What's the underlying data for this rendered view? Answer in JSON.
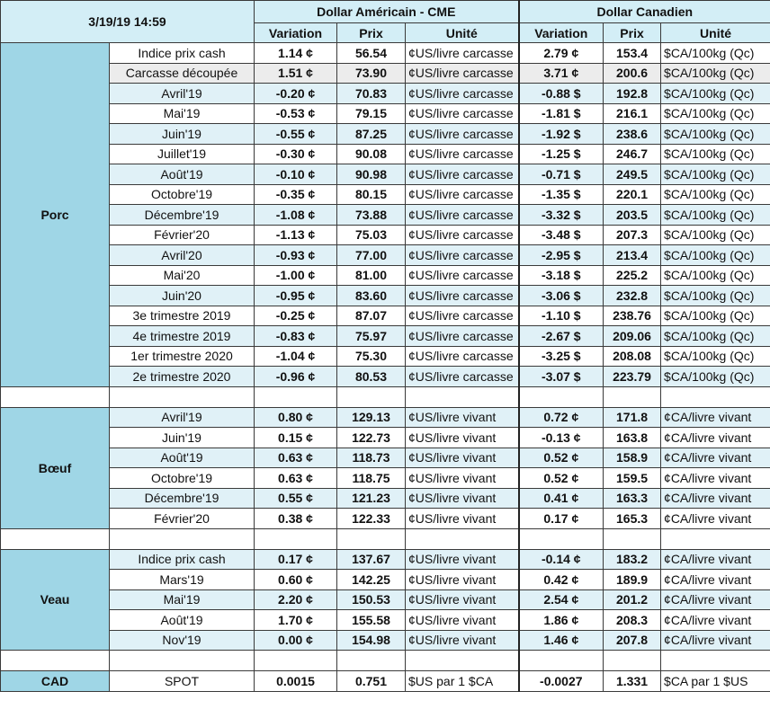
{
  "header": {
    "datetime": "3/19/19 14:59",
    "usd_title": "Dollar Américain - CME",
    "cad_title": "Dollar Canadien",
    "col_variation": "Variation",
    "col_prix": "Prix",
    "col_unite": "Unité"
  },
  "groups": {
    "porc": "Porc",
    "boeuf": "Bœuf",
    "veau": "Veau",
    "cad": "CAD"
  },
  "porc": [
    {
      "label": "Indice prix cash",
      "us_var": "1.14 ¢",
      "us_price": "56.54",
      "us_unit": "¢US/livre carcasse",
      "ca_var": "2.79 ¢",
      "ca_price": "153.4",
      "ca_unit": "$CA/100kg (Qc)",
      "us_sign": "pos",
      "ca_sign": "pos"
    },
    {
      "label": "Carcasse découpée",
      "us_var": "1.51 ¢",
      "us_price": "73.90",
      "us_unit": "¢US/livre carcasse",
      "ca_var": "3.71 ¢",
      "ca_price": "200.6",
      "ca_unit": "$CA/100kg (Qc)",
      "us_sign": "pos",
      "ca_sign": "pos"
    },
    {
      "label": "Avril'19",
      "us_var": "-0.20 ¢",
      "us_price": "70.83",
      "us_unit": "¢US/livre carcasse",
      "ca_var": "-0.88 $",
      "ca_price": "192.8",
      "ca_unit": "$CA/100kg (Qc)",
      "us_sign": "neg",
      "ca_sign": "neg"
    },
    {
      "label": "Mai'19",
      "us_var": "-0.53 ¢",
      "us_price": "79.15",
      "us_unit": "¢US/livre carcasse",
      "ca_var": "-1.81 $",
      "ca_price": "216.1",
      "ca_unit": "$CA/100kg (Qc)",
      "us_sign": "neg",
      "ca_sign": "neg"
    },
    {
      "label": "Juin'19",
      "us_var": "-0.55 ¢",
      "us_price": "87.25",
      "us_unit": "¢US/livre carcasse",
      "ca_var": "-1.92 $",
      "ca_price": "238.6",
      "ca_unit": "$CA/100kg (Qc)",
      "us_sign": "neg",
      "ca_sign": "neg"
    },
    {
      "label": "Juillet'19",
      "us_var": "-0.30 ¢",
      "us_price": "90.08",
      "us_unit": "¢US/livre carcasse",
      "ca_var": "-1.25 $",
      "ca_price": "246.7",
      "ca_unit": "$CA/100kg (Qc)",
      "us_sign": "neg",
      "ca_sign": "neg"
    },
    {
      "label": "Août'19",
      "us_var": "-0.10 ¢",
      "us_price": "90.98",
      "us_unit": "¢US/livre carcasse",
      "ca_var": "-0.71 $",
      "ca_price": "249.5",
      "ca_unit": "$CA/100kg (Qc)",
      "us_sign": "neg",
      "ca_sign": "neg"
    },
    {
      "label": "Octobre'19",
      "us_var": "-0.35 ¢",
      "us_price": "80.15",
      "us_unit": "¢US/livre carcasse",
      "ca_var": "-1.35 $",
      "ca_price": "220.1",
      "ca_unit": "$CA/100kg (Qc)",
      "us_sign": "neg",
      "ca_sign": "neg"
    },
    {
      "label": "Décembre'19",
      "us_var": "-1.08 ¢",
      "us_price": "73.88",
      "us_unit": "¢US/livre carcasse",
      "ca_var": "-3.32 $",
      "ca_price": "203.5",
      "ca_unit": "$CA/100kg (Qc)",
      "us_sign": "neg",
      "ca_sign": "neg"
    },
    {
      "label": "Février'20",
      "us_var": "-1.13 ¢",
      "us_price": "75.03",
      "us_unit": "¢US/livre carcasse",
      "ca_var": "-3.48 $",
      "ca_price": "207.3",
      "ca_unit": "$CA/100kg (Qc)",
      "us_sign": "neg",
      "ca_sign": "neg"
    },
    {
      "label": "Avril'20",
      "us_var": "-0.93 ¢",
      "us_price": "77.00",
      "us_unit": "¢US/livre carcasse",
      "ca_var": "-2.95 $",
      "ca_price": "213.4",
      "ca_unit": "$CA/100kg (Qc)",
      "us_sign": "neg",
      "ca_sign": "neg"
    },
    {
      "label": "Mai'20",
      "us_var": "-1.00 ¢",
      "us_price": "81.00",
      "us_unit": "¢US/livre carcasse",
      "ca_var": "-3.18 $",
      "ca_price": "225.2",
      "ca_unit": "$CA/100kg (Qc)",
      "us_sign": "neg",
      "ca_sign": "neg"
    },
    {
      "label": "Juin'20",
      "us_var": "-0.95 ¢",
      "us_price": "83.60",
      "us_unit": "¢US/livre carcasse",
      "ca_var": "-3.06 $",
      "ca_price": "232.8",
      "ca_unit": "$CA/100kg (Qc)",
      "us_sign": "neg",
      "ca_sign": "neg"
    },
    {
      "label": "3e trimestre 2019",
      "us_var": "-0.25 ¢",
      "us_price": "87.07",
      "us_unit": "¢US/livre carcasse",
      "ca_var": "-1.10 $",
      "ca_price": "238.76",
      "ca_unit": "$CA/100kg (Qc)",
      "us_sign": "neg",
      "ca_sign": "neg"
    },
    {
      "label": "4e trimestre 2019",
      "us_var": "-0.83 ¢",
      "us_price": "75.97",
      "us_unit": "¢US/livre carcasse",
      "ca_var": "-2.67 $",
      "ca_price": "209.06",
      "ca_unit": "$CA/100kg (Qc)",
      "us_sign": "neg",
      "ca_sign": "neg"
    },
    {
      "label": "1er trimestre 2020",
      "us_var": "-1.04 ¢",
      "us_price": "75.30",
      "us_unit": "¢US/livre carcasse",
      "ca_var": "-3.25 $",
      "ca_price": "208.08",
      "ca_unit": "$CA/100kg (Qc)",
      "us_sign": "neg",
      "ca_sign": "neg"
    },
    {
      "label": "2e trimestre 2020",
      "us_var": "-0.96 ¢",
      "us_price": "80.53",
      "us_unit": "¢US/livre carcasse",
      "ca_var": "-3.07 $",
      "ca_price": "223.79",
      "ca_unit": "$CA/100kg (Qc)",
      "us_sign": "neg",
      "ca_sign": "neg"
    }
  ],
  "boeuf": [
    {
      "label": "Avril'19",
      "us_var": "0.80 ¢",
      "us_price": "129.13",
      "us_unit": "¢US/livre vivant",
      "ca_var": "0.72 ¢",
      "ca_price": "171.8",
      "ca_unit": "¢CA/livre vivant",
      "us_sign": "pos",
      "ca_sign": "pos"
    },
    {
      "label": "Juin'19",
      "us_var": "0.15 ¢",
      "us_price": "122.73",
      "us_unit": "¢US/livre vivant",
      "ca_var": "-0.13 ¢",
      "ca_price": "163.8",
      "ca_unit": "¢CA/livre vivant",
      "us_sign": "pos",
      "ca_sign": "neg"
    },
    {
      "label": "Août'19",
      "us_var": "0.63 ¢",
      "us_price": "118.73",
      "us_unit": "¢US/livre vivant",
      "ca_var": "0.52 ¢",
      "ca_price": "158.9",
      "ca_unit": "¢CA/livre vivant",
      "us_sign": "pos",
      "ca_sign": "pos"
    },
    {
      "label": "Octobre'19",
      "us_var": "0.63 ¢",
      "us_price": "118.75",
      "us_unit": "¢US/livre vivant",
      "ca_var": "0.52 ¢",
      "ca_price": "159.5",
      "ca_unit": "¢CA/livre vivant",
      "us_sign": "pos",
      "ca_sign": "pos"
    },
    {
      "label": "Décembre'19",
      "us_var": "0.55 ¢",
      "us_price": "121.23",
      "us_unit": "¢US/livre vivant",
      "ca_var": "0.41 ¢",
      "ca_price": "163.3",
      "ca_unit": "¢CA/livre vivant",
      "us_sign": "pos",
      "ca_sign": "pos"
    },
    {
      "label": "Février'20",
      "us_var": "0.38 ¢",
      "us_price": "122.33",
      "us_unit": "¢US/livre vivant",
      "ca_var": "0.17 ¢",
      "ca_price": "165.3",
      "ca_unit": "¢CA/livre vivant",
      "us_sign": "pos",
      "ca_sign": "pos"
    }
  ],
  "veau": [
    {
      "label": "Indice prix cash",
      "us_var": "0.17 ¢",
      "us_price": "137.67",
      "us_unit": "¢US/livre vivant",
      "ca_var": "-0.14 ¢",
      "ca_price": "183.2",
      "ca_unit": "¢CA/livre vivant",
      "us_sign": "pos",
      "ca_sign": "neg"
    },
    {
      "label": "Mars'19",
      "us_var": "0.60 ¢",
      "us_price": "142.25",
      "us_unit": "¢US/livre vivant",
      "ca_var": "0.42 ¢",
      "ca_price": "189.9",
      "ca_unit": "¢CA/livre vivant",
      "us_sign": "pos",
      "ca_sign": "pos"
    },
    {
      "label": "Mai'19",
      "us_var": "2.20 ¢",
      "us_price": "150.53",
      "us_unit": "¢US/livre vivant",
      "ca_var": "2.54 ¢",
      "ca_price": "201.2",
      "ca_unit": "¢CA/livre vivant",
      "us_sign": "pos",
      "ca_sign": "pos"
    },
    {
      "label": "Août'19",
      "us_var": "1.70 ¢",
      "us_price": "155.58",
      "us_unit": "¢US/livre vivant",
      "ca_var": "1.86 ¢",
      "ca_price": "208.3",
      "ca_unit": "¢CA/livre vivant",
      "us_sign": "pos",
      "ca_sign": "pos"
    },
    {
      "label": "Nov'19",
      "us_var": "0.00 ¢",
      "us_price": "154.98",
      "us_unit": "¢US/livre vivant",
      "ca_var": "1.46 ¢",
      "ca_price": "207.8",
      "ca_unit": "¢CA/livre vivant",
      "us_sign": "zero",
      "ca_sign": "pos"
    }
  ],
  "cad": [
    {
      "label": "SPOT",
      "us_var": "0.0015",
      "us_price": "0.751",
      "us_unit": "$US par 1 $CA",
      "ca_var": "-0.0027",
      "ca_price": "1.331",
      "ca_unit": "$CA par 1 $US",
      "us_sign": "pos",
      "ca_sign": "neg"
    }
  ],
  "colors": {
    "header_bg": "#d3eef6",
    "group_bg": "#9fd6e6",
    "row_alt_bg": "#e0f1f7",
    "negative": "#e01010",
    "positive": "#1fa84a"
  }
}
